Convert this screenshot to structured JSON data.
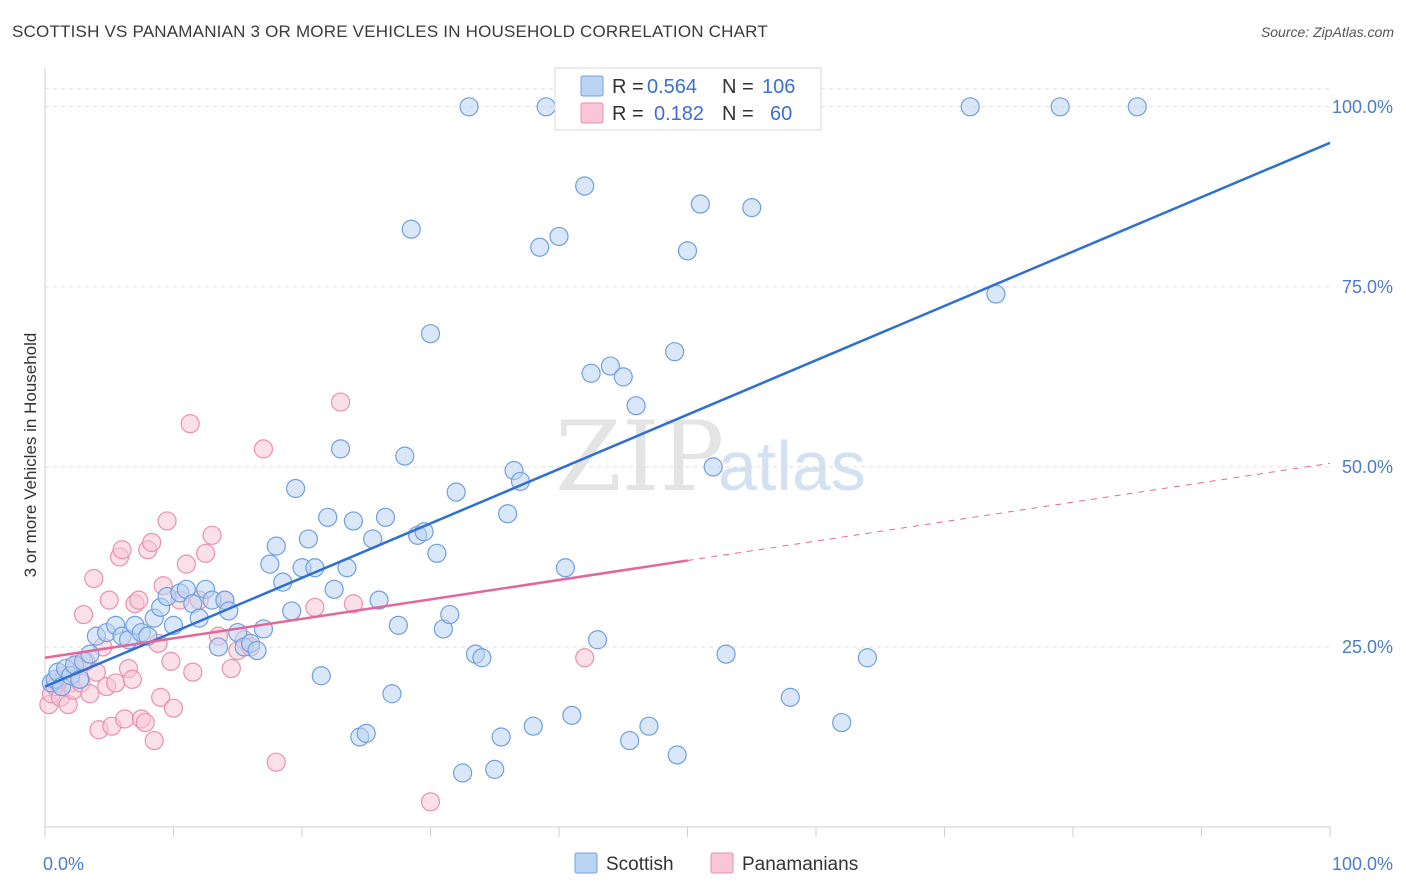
{
  "header": {
    "title": "SCOTTISH VS PANAMANIAN 3 OR MORE VEHICLES IN HOUSEHOLD CORRELATION CHART",
    "source": "Source: ZipAtlas.com"
  },
  "watermark": {
    "part1": "ZIP",
    "part2": "atlas"
  },
  "legend_top": {
    "rows": [
      {
        "r_label": "R =",
        "r_value": "0.564",
        "n_label": "N =",
        "n_value": "106",
        "color": "#a9c8ef"
      },
      {
        "r_label": "R =",
        "r_value": "0.182",
        "n_label": "N =",
        "n_value": "60",
        "color": "#f6b9cc"
      }
    ]
  },
  "legend_bottom": {
    "items": [
      {
        "label": "Scottish",
        "color": "#a9c8ef"
      },
      {
        "label": "Panamanians",
        "color": "#f6b9cc"
      }
    ]
  },
  "chart_data": {
    "type": "scatter",
    "title": "SCOTTISH VS PANAMANIAN 3 OR MORE VEHICLES IN HOUSEHOLD CORRELATION CHART",
    "xlabel": "",
    "ylabel": "3 or more Vehicles in Household",
    "xlim": [
      0,
      100
    ],
    "ylim": [
      0,
      104
    ],
    "x_tick_labels": [
      "0.0%",
      "100.0%"
    ],
    "y_ticks": [
      25,
      50,
      75,
      100
    ],
    "y_tick_labels": [
      "25.0%",
      "50.0%",
      "75.0%",
      "100.0%"
    ],
    "grid": true,
    "legend": "top-center",
    "series": [
      {
        "name": "Scottish",
        "color": "#6f9fe0",
        "fill": "#bcd4f3",
        "line_color": "#2e6fd0",
        "trend": {
          "x": [
            0,
            100
          ],
          "y": [
            19.5,
            95
          ]
        },
        "points": [
          [
            0.5,
            20
          ],
          [
            0.8,
            20.5
          ],
          [
            1,
            21.5
          ],
          [
            1.3,
            19.5
          ],
          [
            1.6,
            22
          ],
          [
            2,
            21
          ],
          [
            2.3,
            22.5
          ],
          [
            2.7,
            20.5
          ],
          [
            3,
            23
          ],
          [
            3.5,
            24
          ],
          [
            4,
            26.5
          ],
          [
            4.8,
            27
          ],
          [
            5.5,
            28
          ],
          [
            6,
            26.5
          ],
          [
            6.5,
            26
          ],
          [
            7,
            28
          ],
          [
            7.5,
            27
          ],
          [
            8,
            26.5
          ],
          [
            8.5,
            29
          ],
          [
            9,
            30.5
          ],
          [
            9.5,
            32
          ],
          [
            10,
            28
          ],
          [
            10.5,
            32.5
          ],
          [
            11,
            33
          ],
          [
            11.5,
            31
          ],
          [
            12,
            29
          ],
          [
            12.5,
            33
          ],
          [
            13,
            31.5
          ],
          [
            13.5,
            25
          ],
          [
            14,
            31.5
          ],
          [
            14.3,
            30
          ],
          [
            15,
            27
          ],
          [
            15.5,
            25
          ],
          [
            16,
            25.5
          ],
          [
            16.5,
            24.5
          ],
          [
            17,
            27.5
          ],
          [
            17.5,
            36.5
          ],
          [
            18,
            39
          ],
          [
            18.5,
            34
          ],
          [
            19.2,
            30
          ],
          [
            19.5,
            47
          ],
          [
            20,
            36
          ],
          [
            20.5,
            40
          ],
          [
            21,
            36
          ],
          [
            21.5,
            21
          ],
          [
            22,
            43
          ],
          [
            22.5,
            33
          ],
          [
            23,
            52.5
          ],
          [
            23.5,
            36
          ],
          [
            24,
            42.5
          ],
          [
            24.5,
            12.5
          ],
          [
            25,
            13
          ],
          [
            25.5,
            40
          ],
          [
            26,
            31.5
          ],
          [
            26.5,
            43
          ],
          [
            27,
            18.5
          ],
          [
            27.5,
            28
          ],
          [
            28,
            51.5
          ],
          [
            28.5,
            83
          ],
          [
            29,
            40.5
          ],
          [
            29.5,
            41
          ],
          [
            30,
            68.5
          ],
          [
            30.5,
            38
          ],
          [
            31,
            27.5
          ],
          [
            31.5,
            29.5
          ],
          [
            32,
            46.5
          ],
          [
            32.5,
            7.5
          ],
          [
            33,
            100
          ],
          [
            33.5,
            24
          ],
          [
            34,
            23.5
          ],
          [
            35,
            8
          ],
          [
            35.5,
            12.5
          ],
          [
            36,
            43.5
          ],
          [
            36.5,
            49.5
          ],
          [
            37,
            48
          ],
          [
            38,
            14
          ],
          [
            38.5,
            80.5
          ],
          [
            39,
            100
          ],
          [
            40,
            82
          ],
          [
            40.5,
            36
          ],
          [
            41,
            15.5
          ],
          [
            42,
            89
          ],
          [
            42.5,
            63
          ],
          [
            43,
            26
          ],
          [
            44,
            64
          ],
          [
            45,
            62.5
          ],
          [
            45.5,
            12
          ],
          [
            46,
            58.5
          ],
          [
            47,
            14
          ],
          [
            49,
            66
          ],
          [
            49.2,
            10
          ],
          [
            50,
            80
          ],
          [
            51,
            86.5
          ],
          [
            52,
            50
          ],
          [
            53,
            24
          ],
          [
            54,
            100
          ],
          [
            55,
            86
          ],
          [
            57,
            100
          ],
          [
            58,
            18
          ],
          [
            58.5,
            100
          ],
          [
            62,
            14.5
          ],
          [
            64,
            23.5
          ],
          [
            72,
            100
          ],
          [
            74,
            74
          ],
          [
            79,
            100
          ],
          [
            85,
            100
          ]
        ]
      },
      {
        "name": "Panamanians",
        "color": "#ec8fb0",
        "fill": "#f8c6d6",
        "line_color": "#e2679a",
        "trend": {
          "x": [
            0,
            50
          ],
          "y": [
            23.5,
            37
          ]
        },
        "trend_extended": {
          "x": [
            50,
            100
          ],
          "y": [
            37,
            50.5
          ]
        },
        "points": [
          [
            0.3,
            17
          ],
          [
            0.5,
            18.5
          ],
          [
            0.8,
            19.5
          ],
          [
            1,
            20
          ],
          [
            1.2,
            18
          ],
          [
            1.5,
            21
          ],
          [
            1.8,
            17
          ],
          [
            2,
            20
          ],
          [
            2.2,
            19
          ],
          [
            2.5,
            22.5
          ],
          [
            2.8,
            20
          ],
          [
            3,
            29.5
          ],
          [
            3.2,
            23
          ],
          [
            3.5,
            18.5
          ],
          [
            3.8,
            34.5
          ],
          [
            4,
            21.5
          ],
          [
            4.2,
            13.5
          ],
          [
            4.5,
            25
          ],
          [
            4.8,
            19.5
          ],
          [
            5,
            31.5
          ],
          [
            5.2,
            14
          ],
          [
            5.5,
            20
          ],
          [
            5.8,
            37.5
          ],
          [
            6,
            38.5
          ],
          [
            6.2,
            15
          ],
          [
            6.5,
            22
          ],
          [
            6.8,
            20.5
          ],
          [
            7,
            31
          ],
          [
            7.3,
            31.5
          ],
          [
            7.5,
            15
          ],
          [
            7.8,
            14.5
          ],
          [
            8,
            38.5
          ],
          [
            8.3,
            39.5
          ],
          [
            8.5,
            12
          ],
          [
            8.8,
            25.5
          ],
          [
            9,
            18
          ],
          [
            9.2,
            33.5
          ],
          [
            9.5,
            42.5
          ],
          [
            9.8,
            23
          ],
          [
            10,
            16.5
          ],
          [
            10.5,
            31.5
          ],
          [
            11,
            36.5
          ],
          [
            11.3,
            56
          ],
          [
            11.5,
            21.5
          ],
          [
            12,
            31.5
          ],
          [
            12.5,
            38
          ],
          [
            13,
            40.5
          ],
          [
            13.5,
            26.5
          ],
          [
            14,
            31.5
          ],
          [
            14.5,
            22
          ],
          [
            15,
            24.5
          ],
          [
            15.5,
            26
          ],
          [
            16,
            25
          ],
          [
            17,
            52.5
          ],
          [
            18,
            9
          ],
          [
            21,
            30.5
          ],
          [
            23,
            59
          ],
          [
            24,
            31
          ],
          [
            30,
            3.5
          ],
          [
            42,
            23.5
          ]
        ]
      }
    ]
  }
}
